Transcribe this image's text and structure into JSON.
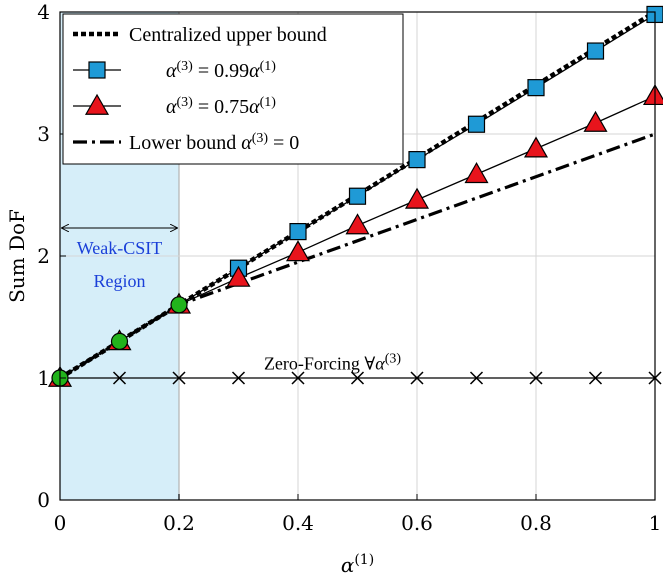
{
  "chart_data": {
    "type": "line",
    "xlabel": {
      "base": "α",
      "sup": "(1)"
    },
    "ylabel": "Sum DoF",
    "xlim": [
      0,
      1
    ],
    "ylim": [
      0,
      4
    ],
    "grid": true,
    "legend_position": "top-left",
    "x_ticks": [
      0,
      0.2,
      0.4,
      0.6,
      0.8,
      1
    ],
    "x_tick_labels": [
      "0",
      "0.2",
      "0.4",
      "0.6",
      "0.8",
      "1"
    ],
    "y_ticks": [
      0,
      1,
      2,
      3,
      4
    ],
    "y_tick_labels": [
      "0",
      "1",
      "2",
      "3",
      "4"
    ],
    "series": [
      {
        "key": "upper",
        "legend": {
          "text": "Centralized upper bound"
        },
        "x": [
          0,
          1
        ],
        "y": [
          1,
          4
        ],
        "color": "#000000",
        "style": "dotted-thick",
        "marker": "none"
      },
      {
        "key": "s099",
        "legend": {
          "pre": "α",
          "sup1": "(3)",
          "mid": " = 0.99α",
          "sup2": "(1)"
        },
        "x": [
          0,
          0.1,
          0.2,
          0.3,
          0.4,
          0.5,
          0.6,
          0.7,
          0.8,
          0.9,
          1.0
        ],
        "y": [
          1.0,
          1.3,
          1.6,
          1.9,
          2.2,
          2.49,
          2.79,
          3.08,
          3.38,
          3.68,
          3.98
        ],
        "color": "#000000",
        "marker_fill": "#1f9ad6",
        "style": "solid",
        "marker": "square"
      },
      {
        "key": "s075",
        "legend": {
          "pre": "α",
          "sup1": "(3)",
          "mid": " = 0.75α",
          "sup2": "(1)"
        },
        "x": [
          0,
          0.1,
          0.2,
          0.3,
          0.4,
          0.5,
          0.6,
          0.7,
          0.8,
          0.9,
          1.0
        ],
        "y": [
          1.0,
          1.3,
          1.6,
          1.82,
          2.03,
          2.25,
          2.46,
          2.67,
          2.88,
          3.09,
          3.31
        ],
        "color": "#000000",
        "marker_fill": "#e8141c",
        "style": "solid",
        "marker": "triangle"
      },
      {
        "key": "lower",
        "legend": {
          "pre": "Lower bound α",
          "sup1": "(3)",
          "mid": " = 0"
        },
        "x": [
          0,
          0.2,
          1
        ],
        "y": [
          1,
          1.6,
          3
        ],
        "color": "#000000",
        "style": "dashdot-thick",
        "marker": "none"
      },
      {
        "key": "zf",
        "legend": null,
        "x": [
          0,
          0.1,
          0.2,
          0.3,
          0.4,
          0.5,
          0.6,
          0.7,
          0.8,
          0.9,
          1.0
        ],
        "y": [
          1,
          1,
          1,
          1,
          1,
          1,
          1,
          1,
          1,
          1,
          1
        ],
        "color": "#000000",
        "style": "solid",
        "marker": "cross"
      },
      {
        "key": "weak",
        "legend": null,
        "x": [
          0,
          0.1,
          0.2
        ],
        "y": [
          1.0,
          1.3,
          1.6
        ],
        "color": "#000000",
        "marker_fill": "#22b31c",
        "style": "none",
        "marker": "circle"
      }
    ],
    "annotations": {
      "zero_forcing": {
        "pre": "Zero-Forcing ∀α",
        "sup": "(3)",
        "x": 0.5,
        "y": 1.12
      },
      "weak_region": {
        "line1": "Weak-CSIT",
        "line2": "Region",
        "x_range": [
          0,
          0.2
        ],
        "fill": "#d6eef9",
        "text_color": "#1a3fd8"
      }
    }
  }
}
